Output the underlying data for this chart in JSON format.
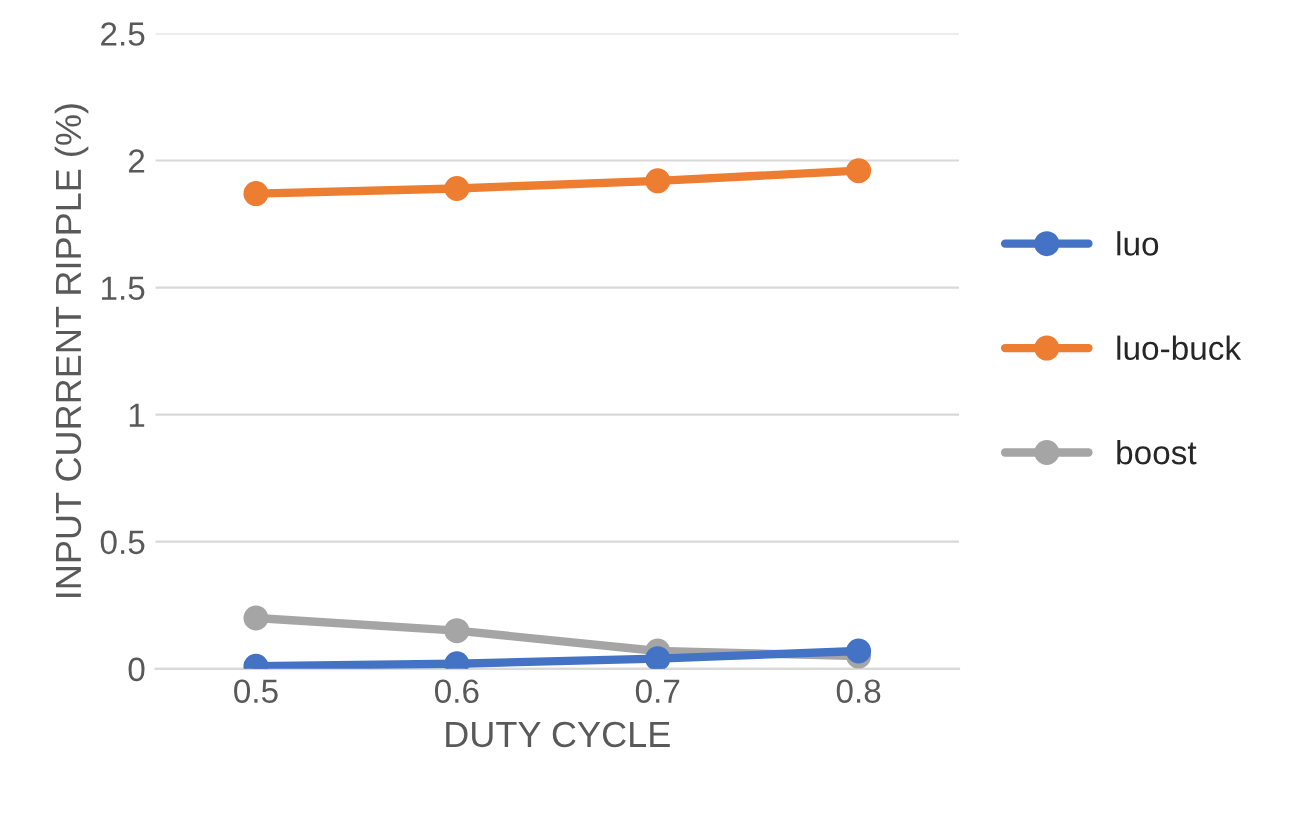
{
  "chart_data": {
    "type": "line",
    "xlabel": "DUTY CYCLE",
    "ylabel": "INPUT CURRENT RIPPLE (%)",
    "categories": [
      "0.5",
      "0.6",
      "0.7",
      "0.8"
    ],
    "series": [
      {
        "name": "luo",
        "color": "#4472c4",
        "values": [
          0.01,
          0.02,
          0.04,
          0.07
        ]
      },
      {
        "name": "luo-buck",
        "color": "#ed7d31",
        "values": [
          1.87,
          1.89,
          1.92,
          1.96
        ]
      },
      {
        "name": "boost",
        "color": "#a5a5a5",
        "values": [
          0.2,
          0.15,
          0.07,
          0.05
        ]
      }
    ],
    "ylim": [
      0,
      2.5
    ],
    "yticks": [
      0,
      {
        "value": 0.5,
        "label": "0.5"
      },
      1,
      {
        "value": 1.5,
        "label": "1.5"
      },
      2,
      {
        "value": 2.5,
        "label": "2.5"
      }
    ],
    "grid": "y",
    "legend": "right",
    "marker": "circle",
    "line_style": "solid"
  }
}
